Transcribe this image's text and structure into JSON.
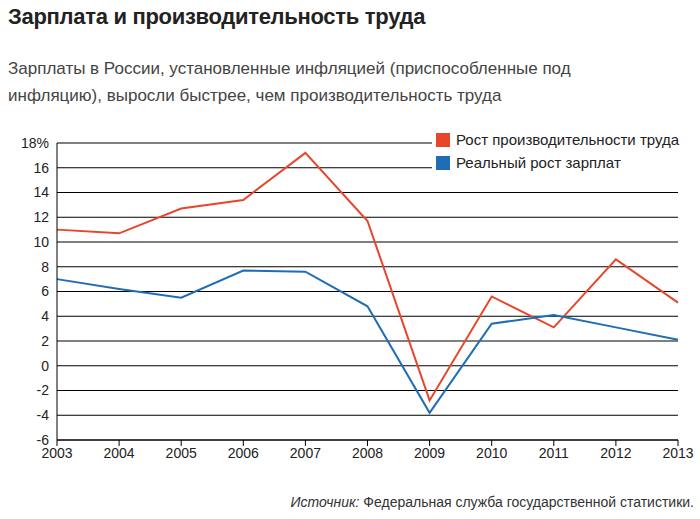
{
  "chart_data": {
    "type": "line",
    "title": "Зарплата и производительность труда",
    "subtitle": "Зарплаты в России, установленные инфляцией (приспособленные под инфляцию), выросли быстрее, чем производительность труда",
    "source": "Источник: Федеральная служба государственной статистики.",
    "categories": [
      "2003",
      "2004",
      "2005",
      "2006",
      "2007",
      "2008",
      "2009",
      "2010",
      "2011",
      "2012",
      "2013"
    ],
    "series": [
      {
        "name": "Рост производительности труда",
        "color": "#e8462a",
        "values": [
          11.0,
          10.7,
          12.7,
          13.4,
          17.2,
          11.7,
          -2.8,
          5.6,
          3.1,
          8.6,
          5.1
        ]
      },
      {
        "name": "Реальный рост зарплат",
        "color": "#1f6db5",
        "values": [
          7.0,
          6.2,
          5.5,
          7.7,
          7.6,
          4.8,
          -3.8,
          3.4,
          4.1,
          3.1,
          2.1
        ]
      }
    ],
    "ylim": [
      -6,
      18
    ],
    "yticks": [
      -6,
      -4,
      -2,
      0,
      2,
      4,
      6,
      8,
      10,
      12,
      14,
      16,
      {
        "value": 18,
        "label": "18%"
      }
    ],
    "grid": true,
    "legend": "upper right"
  }
}
